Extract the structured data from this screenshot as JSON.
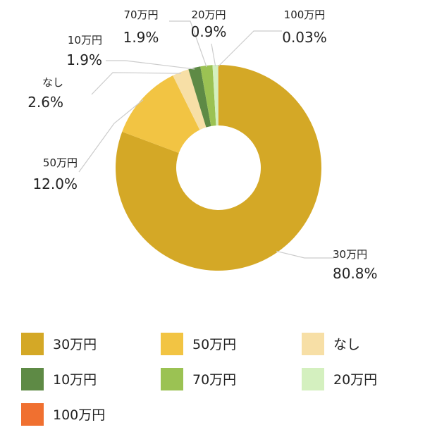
{
  "chart_data": {
    "type": "pie",
    "donut": true,
    "legend_position": "bottom",
    "slices": [
      {
        "label": "30万円",
        "value": 80.8,
        "value_text": "80.8%",
        "color": "#d4a826"
      },
      {
        "label": "50万円",
        "value": 12.0,
        "value_text": "12.0%",
        "color": "#f2c443"
      },
      {
        "label": "なし",
        "value": 2.6,
        "value_text": "2.6%",
        "color": "#f7dfa6"
      },
      {
        "label": "10万円",
        "value": 1.9,
        "value_text": "1.9%",
        "color": "#5e8a45"
      },
      {
        "label": "70万円",
        "value": 1.9,
        "value_text": "1.9%",
        "color": "#9bc253"
      },
      {
        "label": "20万円",
        "value": 0.9,
        "value_text": "0.9%",
        "color": "#d4f0bf"
      },
      {
        "label": "100万円",
        "value": 0.03,
        "value_text": "0.03%",
        "color": "#f07030"
      }
    ]
  }
}
